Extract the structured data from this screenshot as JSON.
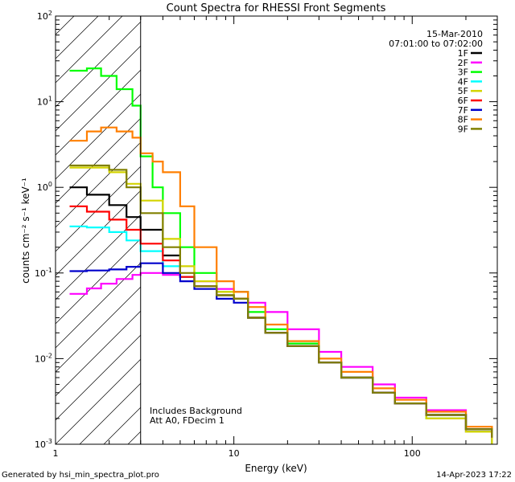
{
  "chart_data": {
    "type": "line",
    "title": "Count Spectra for RHESSI Front Segments",
    "xlabel": "Energy (keV)",
    "ylabel": "counts cm⁻² s⁻¹ keV⁻¹",
    "xscale": "log",
    "yscale": "log",
    "xlim": [
      1,
      300
    ],
    "ylim": [
      0.001,
      100
    ],
    "x_tick_labels": [
      {
        "value": 1,
        "label": "1"
      },
      {
        "value": 10,
        "label": "10"
      },
      {
        "value": 100,
        "label": "100"
      }
    ],
    "y_tick_labels": [
      {
        "value": 100,
        "base": "10",
        "exp": "2"
      },
      {
        "value": 10,
        "base": "10",
        "exp": "1"
      },
      {
        "value": 1,
        "base": "10",
        "exp": "0"
      },
      {
        "value": 0.1,
        "base": "10",
        "exp": "-1"
      },
      {
        "value": 0.01,
        "base": "10",
        "exp": "-2"
      },
      {
        "value": 0.001,
        "base": "10",
        "exp": "-3"
      }
    ],
    "shaded_region": {
      "x_from": 1,
      "x_to": 3,
      "pattern": "diagonal-hatch"
    },
    "date": "15-Mar-2010",
    "time_range": "07:01:00 to 07:02:00",
    "annotations": [
      "Includes Background",
      "Att A0, FDecim 1"
    ],
    "series": [
      {
        "name": "1F",
        "color": "#000000",
        "points": [
          [
            1.2,
            1.0
          ],
          [
            1.5,
            0.82
          ],
          [
            2.0,
            0.62
          ],
          [
            2.5,
            0.45
          ],
          [
            3.0,
            0.32
          ],
          [
            4,
            0.16
          ],
          [
            5,
            0.09
          ],
          [
            6,
            0.07
          ],
          [
            8,
            0.055
          ],
          [
            10,
            0.05
          ],
          [
            12,
            0.03
          ],
          [
            15,
            0.02
          ],
          [
            20,
            0.014
          ],
          [
            30,
            0.009
          ],
          [
            40,
            0.006
          ],
          [
            60,
            0.004
          ],
          [
            80,
            0.003
          ],
          [
            120,
            0.0022
          ],
          [
            200,
            0.0015
          ],
          [
            280,
            0.0012
          ]
        ]
      },
      {
        "name": "2F",
        "color": "#ff00ff",
        "points": [
          [
            1.2,
            0.057
          ],
          [
            1.5,
            0.066
          ],
          [
            1.8,
            0.075
          ],
          [
            2.2,
            0.085
          ],
          [
            2.7,
            0.095
          ],
          [
            3.0,
            0.1
          ],
          [
            4,
            0.095
          ],
          [
            5,
            0.09
          ],
          [
            6,
            0.08
          ],
          [
            8,
            0.065
          ],
          [
            10,
            0.06
          ],
          [
            12,
            0.045
          ],
          [
            15,
            0.035
          ],
          [
            20,
            0.022
          ],
          [
            30,
            0.012
          ],
          [
            40,
            0.008
          ],
          [
            60,
            0.005
          ],
          [
            80,
            0.0035
          ],
          [
            120,
            0.0025
          ],
          [
            200,
            0.0014
          ],
          [
            280,
            0.001
          ]
        ]
      },
      {
        "name": "3F",
        "color": "#00ff00",
        "points": [
          [
            1.2,
            23.0
          ],
          [
            1.5,
            24.5
          ],
          [
            1.8,
            20.0
          ],
          [
            2.2,
            14.0
          ],
          [
            2.7,
            9.0
          ],
          [
            3.0,
            2.3
          ],
          [
            3.5,
            1.0
          ],
          [
            4,
            0.5
          ],
          [
            5,
            0.2
          ],
          [
            6,
            0.1
          ],
          [
            8,
            0.06
          ],
          [
            10,
            0.06
          ],
          [
            12,
            0.035
          ],
          [
            15,
            0.022
          ],
          [
            20,
            0.015
          ],
          [
            30,
            0.009
          ],
          [
            40,
            0.006
          ],
          [
            60,
            0.004
          ],
          [
            80,
            0.003
          ],
          [
            120,
            0.002
          ],
          [
            200,
            0.0014
          ],
          [
            280,
            0.001
          ]
        ]
      },
      {
        "name": "4F",
        "color": "#00ffff",
        "points": [
          [
            1.2,
            0.35
          ],
          [
            1.5,
            0.34
          ],
          [
            2.0,
            0.3
          ],
          [
            2.5,
            0.24
          ],
          [
            3.0,
            0.18
          ],
          [
            4,
            0.12
          ],
          [
            5,
            0.09
          ],
          [
            6,
            0.07
          ],
          [
            8,
            0.055
          ],
          [
            10,
            0.05
          ],
          [
            12,
            0.03
          ],
          [
            15,
            0.02
          ],
          [
            20,
            0.014
          ],
          [
            30,
            0.009
          ],
          [
            40,
            0.006
          ],
          [
            60,
            0.004
          ],
          [
            80,
            0.003
          ],
          [
            120,
            0.0022
          ],
          [
            200,
            0.0015
          ],
          [
            280,
            0.0012
          ]
        ]
      },
      {
        "name": "5F",
        "color": "#d4d400",
        "points": [
          [
            1.2,
            1.7
          ],
          [
            1.5,
            1.7
          ],
          [
            2.0,
            1.5
          ],
          [
            2.5,
            1.1
          ],
          [
            3.0,
            0.7
          ],
          [
            4,
            0.25
          ],
          [
            5,
            0.12
          ],
          [
            6,
            0.08
          ],
          [
            8,
            0.06
          ],
          [
            10,
            0.05
          ],
          [
            12,
            0.03
          ],
          [
            15,
            0.02
          ],
          [
            20,
            0.014
          ],
          [
            30,
            0.009
          ],
          [
            40,
            0.006
          ],
          [
            60,
            0.004
          ],
          [
            80,
            0.003
          ],
          [
            120,
            0.002
          ],
          [
            200,
            0.0014
          ],
          [
            280,
            0.001
          ]
        ]
      },
      {
        "name": "6F",
        "color": "#ff0000",
        "points": [
          [
            1.2,
            0.6
          ],
          [
            1.5,
            0.52
          ],
          [
            2.0,
            0.42
          ],
          [
            2.5,
            0.32
          ],
          [
            3.0,
            0.22
          ],
          [
            4,
            0.14
          ],
          [
            5,
            0.09
          ],
          [
            6,
            0.07
          ],
          [
            8,
            0.055
          ],
          [
            10,
            0.05
          ],
          [
            12,
            0.03
          ],
          [
            15,
            0.02
          ],
          [
            20,
            0.014
          ],
          [
            30,
            0.009
          ],
          [
            40,
            0.006
          ],
          [
            60,
            0.004
          ],
          [
            80,
            0.003
          ],
          [
            120,
            0.0022
          ],
          [
            200,
            0.0015
          ],
          [
            280,
            0.0012
          ]
        ]
      },
      {
        "name": "7F",
        "color": "#0000cc",
        "points": [
          [
            1.2,
            0.105
          ],
          [
            1.5,
            0.107
          ],
          [
            2.0,
            0.11
          ],
          [
            2.5,
            0.118
          ],
          [
            3.0,
            0.13
          ],
          [
            4,
            0.1
          ],
          [
            5,
            0.08
          ],
          [
            6,
            0.065
          ],
          [
            8,
            0.05
          ],
          [
            10,
            0.045
          ],
          [
            12,
            0.03
          ],
          [
            15,
            0.02
          ],
          [
            20,
            0.014
          ],
          [
            30,
            0.009
          ],
          [
            40,
            0.006
          ],
          [
            60,
            0.004
          ],
          [
            80,
            0.003
          ],
          [
            120,
            0.0022
          ],
          [
            200,
            0.0015
          ],
          [
            280,
            0.0012
          ]
        ]
      },
      {
        "name": "8F",
        "color": "#ff7f00",
        "points": [
          [
            1.2,
            3.5
          ],
          [
            1.5,
            4.5
          ],
          [
            1.8,
            5.0
          ],
          [
            2.2,
            4.5
          ],
          [
            2.7,
            3.8
          ],
          [
            3.0,
            2.5
          ],
          [
            3.5,
            2.0
          ],
          [
            4,
            1.5
          ],
          [
            5,
            0.6
          ],
          [
            6,
            0.2
          ],
          [
            8,
            0.08
          ],
          [
            10,
            0.06
          ],
          [
            12,
            0.04
          ],
          [
            15,
            0.025
          ],
          [
            20,
            0.016
          ],
          [
            30,
            0.01
          ],
          [
            40,
            0.007
          ],
          [
            60,
            0.0045
          ],
          [
            80,
            0.0033
          ],
          [
            120,
            0.0024
          ],
          [
            200,
            0.0016
          ],
          [
            280,
            0.0012
          ]
        ]
      },
      {
        "name": "9F",
        "color": "#808000",
        "points": [
          [
            1.2,
            1.8
          ],
          [
            1.5,
            1.8
          ],
          [
            2.0,
            1.6
          ],
          [
            2.5,
            1.0
          ],
          [
            3.0,
            0.5
          ],
          [
            4,
            0.2
          ],
          [
            5,
            0.1
          ],
          [
            6,
            0.07
          ],
          [
            8,
            0.055
          ],
          [
            10,
            0.05
          ],
          [
            12,
            0.03
          ],
          [
            15,
            0.02
          ],
          [
            20,
            0.014
          ],
          [
            30,
            0.009
          ],
          [
            40,
            0.006
          ],
          [
            60,
            0.004
          ],
          [
            80,
            0.003
          ],
          [
            120,
            0.0022
          ],
          [
            200,
            0.0015
          ],
          [
            280,
            0.0012
          ]
        ]
      }
    ]
  },
  "footer": {
    "left": "Generated by hsi_min_spectra_plot.pro",
    "right": "14-Apr-2023 17:22"
  }
}
